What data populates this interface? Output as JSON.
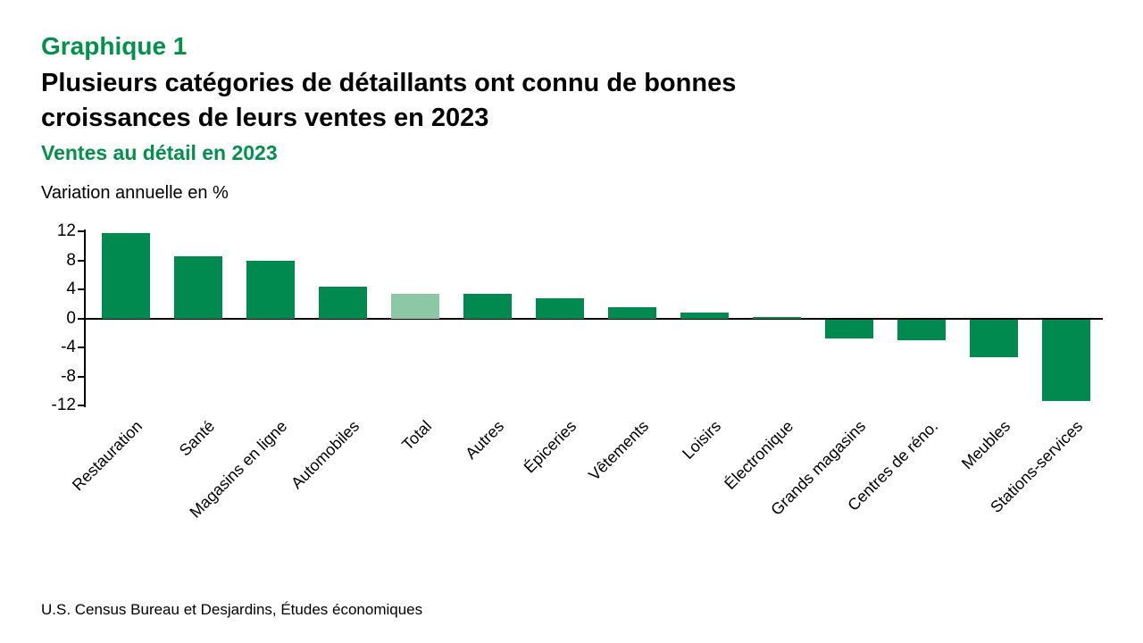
{
  "header": {
    "kicker": "Graphique 1",
    "title_line1": "Plusieurs catégories de détaillants ont connu de bonnes",
    "title_line2": "croissances de leurs ventes en 2023"
  },
  "footer": {
    "source": "U.S. Census Bureau et Desjardins, Études économiques"
  },
  "colors": {
    "accent_green": "#00914B",
    "bar_green": "#008A50",
    "bar_highlight_light_green": "#8CC8A5",
    "axis_black": "#000000",
    "text_black": "#000000"
  },
  "chart_data": {
    "type": "bar",
    "title": "Ventes au détail en 2023",
    "ylabel": "Variation annuelle en %",
    "categories": [
      "Restauration",
      "Santé",
      "Magasins en ligne",
      "Automobiles",
      "Total",
      "Autres",
      "Épiceries",
      "Vêtements",
      "Loisirs",
      "Électronique",
      "Grands magasins",
      "Centres de réno.",
      "Meubles",
      "Stations-services"
    ],
    "values": [
      11.7,
      8.6,
      8.0,
      4.4,
      3.4,
      3.4,
      2.8,
      1.6,
      0.8,
      0.2,
      -2.7,
      -2.9,
      -5.2,
      -11.2
    ],
    "highlight_category": "Total",
    "highlight_index": 4,
    "y_ticks": [
      12,
      8,
      4,
      0,
      -4,
      -8,
      -12
    ],
    "ylim": [
      -12,
      12
    ],
    "grid": false,
    "legend": false,
    "bar_orientation": "vertical",
    "x_label_rotation_deg": 45
  }
}
